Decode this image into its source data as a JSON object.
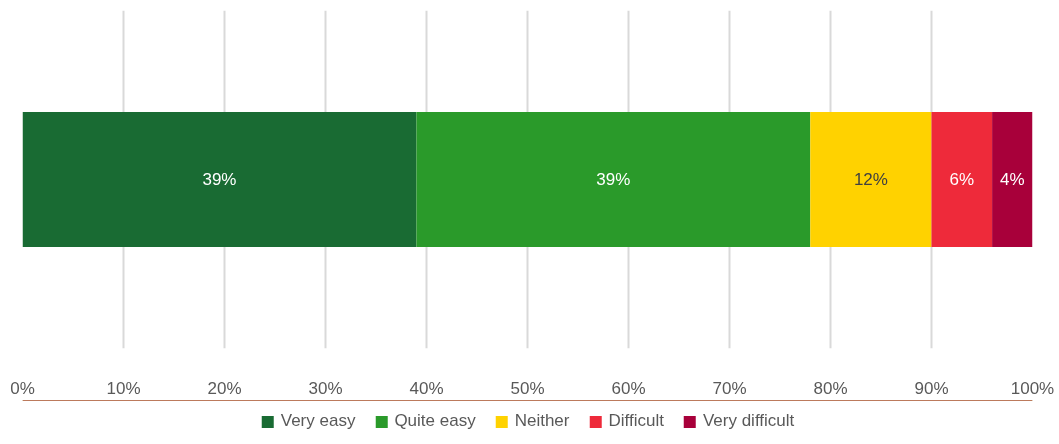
{
  "chart_data": {
    "type": "bar",
    "orientation": "horizontal",
    "stacked": true,
    "categories": [
      null
    ],
    "series": [
      {
        "name": "Very easy",
        "color": "#196b33",
        "values": [
          39
        ],
        "value_labels": [
          "39%"
        ]
      },
      {
        "name": "Quite easy",
        "color": "#2a9a2a",
        "values": [
          39
        ],
        "value_labels": [
          "39%"
        ]
      },
      {
        "name": "Neither",
        "color": "#ffd200",
        "values": [
          12
        ],
        "value_labels": [
          "12%"
        ]
      },
      {
        "name": "Difficult",
        "color": "#ee2a3a",
        "values": [
          6
        ],
        "value_labels": [
          "6%"
        ]
      },
      {
        "name": "Very difficult",
        "color": "#a8003a",
        "values": [
          4
        ],
        "value_labels": [
          "4%"
        ]
      }
    ],
    "xlim": [
      0,
      100
    ],
    "xticks": [
      {
        "value": 0,
        "label": "0%"
      },
      {
        "value": 10,
        "label": "10%"
      },
      {
        "value": 20,
        "label": "20%"
      },
      {
        "value": 30,
        "label": "30%"
      },
      {
        "value": 40,
        "label": "40%"
      },
      {
        "value": 50,
        "label": "50%"
      },
      {
        "value": 60,
        "label": "60%"
      },
      {
        "value": 70,
        "label": "70%"
      },
      {
        "value": 80,
        "label": "80%"
      },
      {
        "value": 90,
        "label": "90%"
      },
      {
        "value": 100,
        "label": "100%"
      }
    ],
    "grid": "x",
    "legend": "bottom",
    "tick_labels": "x"
  }
}
